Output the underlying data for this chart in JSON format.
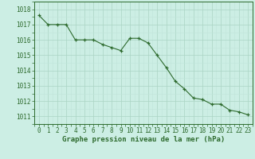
{
  "x": [
    0,
    1,
    2,
    3,
    4,
    5,
    6,
    7,
    8,
    9,
    10,
    11,
    12,
    13,
    14,
    15,
    16,
    17,
    18,
    19,
    20,
    21,
    22,
    23
  ],
  "y": [
    1017.6,
    1017.0,
    1017.0,
    1017.0,
    1016.0,
    1016.0,
    1016.0,
    1015.7,
    1015.5,
    1015.3,
    1016.1,
    1016.1,
    1015.8,
    1015.0,
    1014.2,
    1013.3,
    1012.8,
    1012.2,
    1012.1,
    1011.8,
    1011.8,
    1011.4,
    1011.3,
    1011.1
  ],
  "line_color": "#2d6a2d",
  "marker_color": "#2d6a2d",
  "bg_color": "#cceee4",
  "grid_color_major": "#aad4c4",
  "grid_color_minor": "#c0e4da",
  "xlabel": "Graphe pression niveau de la mer (hPa)",
  "ylim": [
    1010.5,
    1018.5
  ],
  "xlim": [
    -0.5,
    23.5
  ],
  "yticks": [
    1011,
    1012,
    1013,
    1014,
    1015,
    1016,
    1017,
    1018
  ],
  "xticks": [
    0,
    1,
    2,
    3,
    4,
    5,
    6,
    7,
    8,
    9,
    10,
    11,
    12,
    13,
    14,
    15,
    16,
    17,
    18,
    19,
    20,
    21,
    22,
    23
  ],
  "xtick_labels": [
    "0",
    "1",
    "2",
    "3",
    "4",
    "5",
    "6",
    "7",
    "8",
    "9",
    "10",
    "11",
    "12",
    "13",
    "14",
    "15",
    "16",
    "17",
    "18",
    "19",
    "20",
    "21",
    "22",
    "23"
  ],
  "tick_fontsize": 5.5,
  "xlabel_fontsize": 6.5
}
